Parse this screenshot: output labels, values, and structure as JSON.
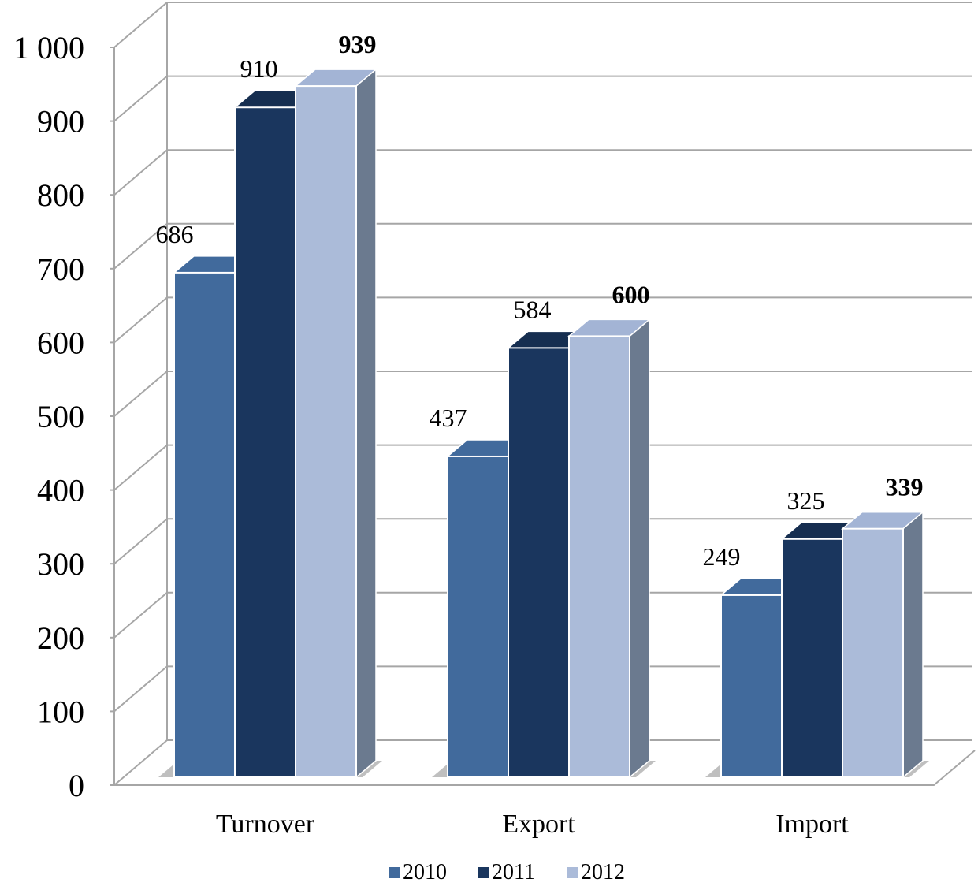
{
  "chart_data": {
    "type": "bar",
    "categories": [
      "Turnover",
      "Export",
      "Import"
    ],
    "series": [
      {
        "name": "2010",
        "values": [
          686,
          437,
          249
        ],
        "color": "#416A9C"
      },
      {
        "name": "2011",
        "values": [
          910,
          584,
          325
        ],
        "color": "#1A365E"
      },
      {
        "name": "2012",
        "values": [
          939,
          600,
          339
        ],
        "color": "#ABBBD9"
      }
    ],
    "data_labels": [
      [
        "686",
        "437",
        "249"
      ],
      [
        "910",
        "584",
        "325"
      ],
      [
        "939",
        "600",
        "339"
      ]
    ],
    "bold_series": "2012",
    "yticks": [
      "0",
      "100",
      "200",
      "300",
      "400",
      "500",
      "600",
      "700",
      "800",
      "900",
      "1 000"
    ],
    "ylim": [
      0,
      1000
    ],
    "grid": true,
    "legend_position": "bottom",
    "style": "3d-clustered-column"
  }
}
